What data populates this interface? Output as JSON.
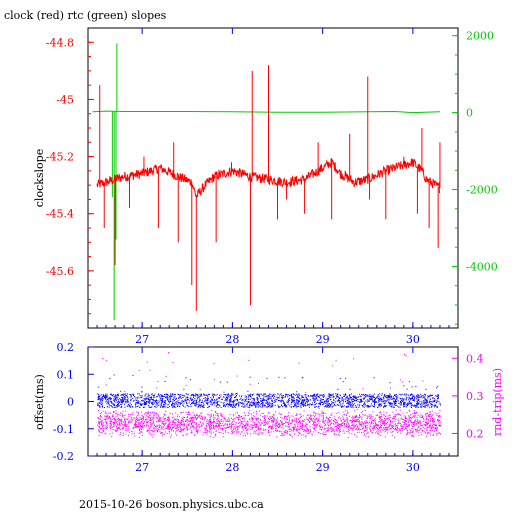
{
  "page": {
    "title": "clock (red) rtc (green) slopes",
    "footer": "2015-10-26  boson.physics.ubc.ca"
  },
  "colors": {
    "red": "#ff0000",
    "green": "#00cc00",
    "blue": "#0000ff",
    "magenta": "#ff00ff",
    "black": "#000000"
  },
  "chart_data": [
    {
      "type": "line",
      "title": "clock (red) rtc (green) slopes",
      "ylabel": "clockslope",
      "xlim": [
        26.4,
        30.5
      ],
      "ylim": [
        -45.8,
        -44.75
      ],
      "y2lim": [
        -5600,
        2200
      ],
      "xticks": [
        "27",
        "28",
        "29",
        "30"
      ],
      "xtick_values": [
        27,
        28,
        29,
        30
      ],
      "yticks": [
        "-44.8",
        "-45",
        "-45.2",
        "-45.4",
        "-45.6"
      ],
      "ytick_values": [
        -44.8,
        -45.0,
        -45.2,
        -45.4,
        -45.6
      ],
      "y2ticks": [
        "2000",
        "0",
        "-2000",
        "-4000"
      ],
      "y2tick_values": [
        2000,
        0,
        -2000,
        -4000
      ],
      "grid": false,
      "series": [
        {
          "name": "clock",
          "axis": "left",
          "color": "#ff0000",
          "x": [
            26.5,
            26.6,
            26.7,
            26.8,
            27.0,
            27.2,
            27.4,
            27.55,
            27.6,
            27.7,
            27.8,
            28.0,
            28.2,
            28.4,
            28.6,
            28.8,
            29.0,
            29.1,
            29.2,
            29.35,
            29.5,
            29.7,
            29.9,
            30.0,
            30.1,
            30.15,
            30.2,
            30.3
          ],
          "y": [
            -45.3,
            -45.29,
            -45.28,
            -45.27,
            -45.26,
            -45.24,
            -45.27,
            -45.29,
            -45.34,
            -45.3,
            -45.27,
            -45.25,
            -45.27,
            -45.28,
            -45.29,
            -45.28,
            -45.24,
            -45.22,
            -45.26,
            -45.29,
            -45.28,
            -45.25,
            -45.23,
            -45.22,
            -45.25,
            -45.28,
            -45.29,
            -45.31
          ],
          "spikes": [
            {
              "x": 26.53,
              "y": -44.95
            },
            {
              "x": 26.58,
              "y": -45.45
            },
            {
              "x": 26.7,
              "y": -45.58
            },
            {
              "x": 26.86,
              "y": -45.38
            },
            {
              "x": 27.02,
              "y": -45.2
            },
            {
              "x": 27.18,
              "y": -45.45
            },
            {
              "x": 27.35,
              "y": -45.15
            },
            {
              "x": 27.4,
              "y": -45.5
            },
            {
              "x": 27.55,
              "y": -45.65
            },
            {
              "x": 27.6,
              "y": -45.74
            },
            {
              "x": 27.82,
              "y": -45.5
            },
            {
              "x": 27.99,
              "y": -45.22
            },
            {
              "x": 28.2,
              "y": -45.72
            },
            {
              "x": 28.22,
              "y": -44.9
            },
            {
              "x": 28.4,
              "y": -44.88
            },
            {
              "x": 28.5,
              "y": -45.42
            },
            {
              "x": 28.6,
              "y": -45.35
            },
            {
              "x": 28.8,
              "y": -45.4
            },
            {
              "x": 28.95,
              "y": -45.15
            },
            {
              "x": 29.1,
              "y": -45.42
            },
            {
              "x": 29.25,
              "y": -45.25
            },
            {
              "x": 29.3,
              "y": -45.12
            },
            {
              "x": 29.5,
              "y": -44.92
            },
            {
              "x": 29.52,
              "y": -45.35
            },
            {
              "x": 29.7,
              "y": -45.42
            },
            {
              "x": 29.9,
              "y": -45.2
            },
            {
              "x": 30.05,
              "y": -45.4
            },
            {
              "x": 30.1,
              "y": -45.1
            },
            {
              "x": 30.18,
              "y": -45.45
            },
            {
              "x": 30.28,
              "y": -45.52
            },
            {
              "x": 30.3,
              "y": -45.15
            }
          ]
        },
        {
          "name": "rtc",
          "axis": "right",
          "color": "#00cc00",
          "x": [
            26.45,
            26.6,
            26.8,
            27.0,
            27.5,
            28.0,
            28.5,
            29.0,
            29.5,
            29.8,
            30.0,
            30.3
          ],
          "y": [
            20,
            40,
            30,
            30,
            30,
            20,
            10,
            10,
            20,
            30,
            0,
            20
          ],
          "spikes": [
            {
              "x": 26.67,
              "y": -2200
            },
            {
              "x": 26.69,
              "y": -5400
            },
            {
              "x": 26.71,
              "y": -3300
            },
            {
              "x": 26.72,
              "y": 1800
            }
          ]
        }
      ]
    },
    {
      "type": "scatter",
      "ylabel": "offset(ms)",
      "y2label": "rnd-trip(ms)",
      "xlim": [
        26.4,
        30.5
      ],
      "ylim": [
        -0.2,
        0.2
      ],
      "y2lim": [
        0.14,
        0.43
      ],
      "xticks": [
        "27",
        "28",
        "29",
        "30"
      ],
      "xtick_values": [
        27,
        28,
        29,
        30
      ],
      "yticks": [
        "0.2",
        "0.1",
        "0",
        "-0.1",
        "-0.2"
      ],
      "ytick_values": [
        0.2,
        0.1,
        0.0,
        -0.1,
        -0.2
      ],
      "y2ticks": [
        "0.4",
        "0.3",
        "0.2"
      ],
      "y2tick_values": [
        0.4,
        0.3,
        0.2
      ],
      "grid": false,
      "series": [
        {
          "name": "offset",
          "axis": "left",
          "color": "#0000ff",
          "x_range": [
            26.5,
            30.3
          ],
          "band": [
            -0.02,
            0.03
          ],
          "outliers": [
            0.06,
            0.04,
            0.1
          ]
        },
        {
          "name": "rnd-trip",
          "axis": "right",
          "color": "#ff00ff",
          "x_range": [
            26.5,
            30.3
          ],
          "band": [
            0.19,
            0.265
          ],
          "outliers": [
            0.3,
            0.33,
            0.37,
            0.42
          ]
        }
      ]
    }
  ]
}
